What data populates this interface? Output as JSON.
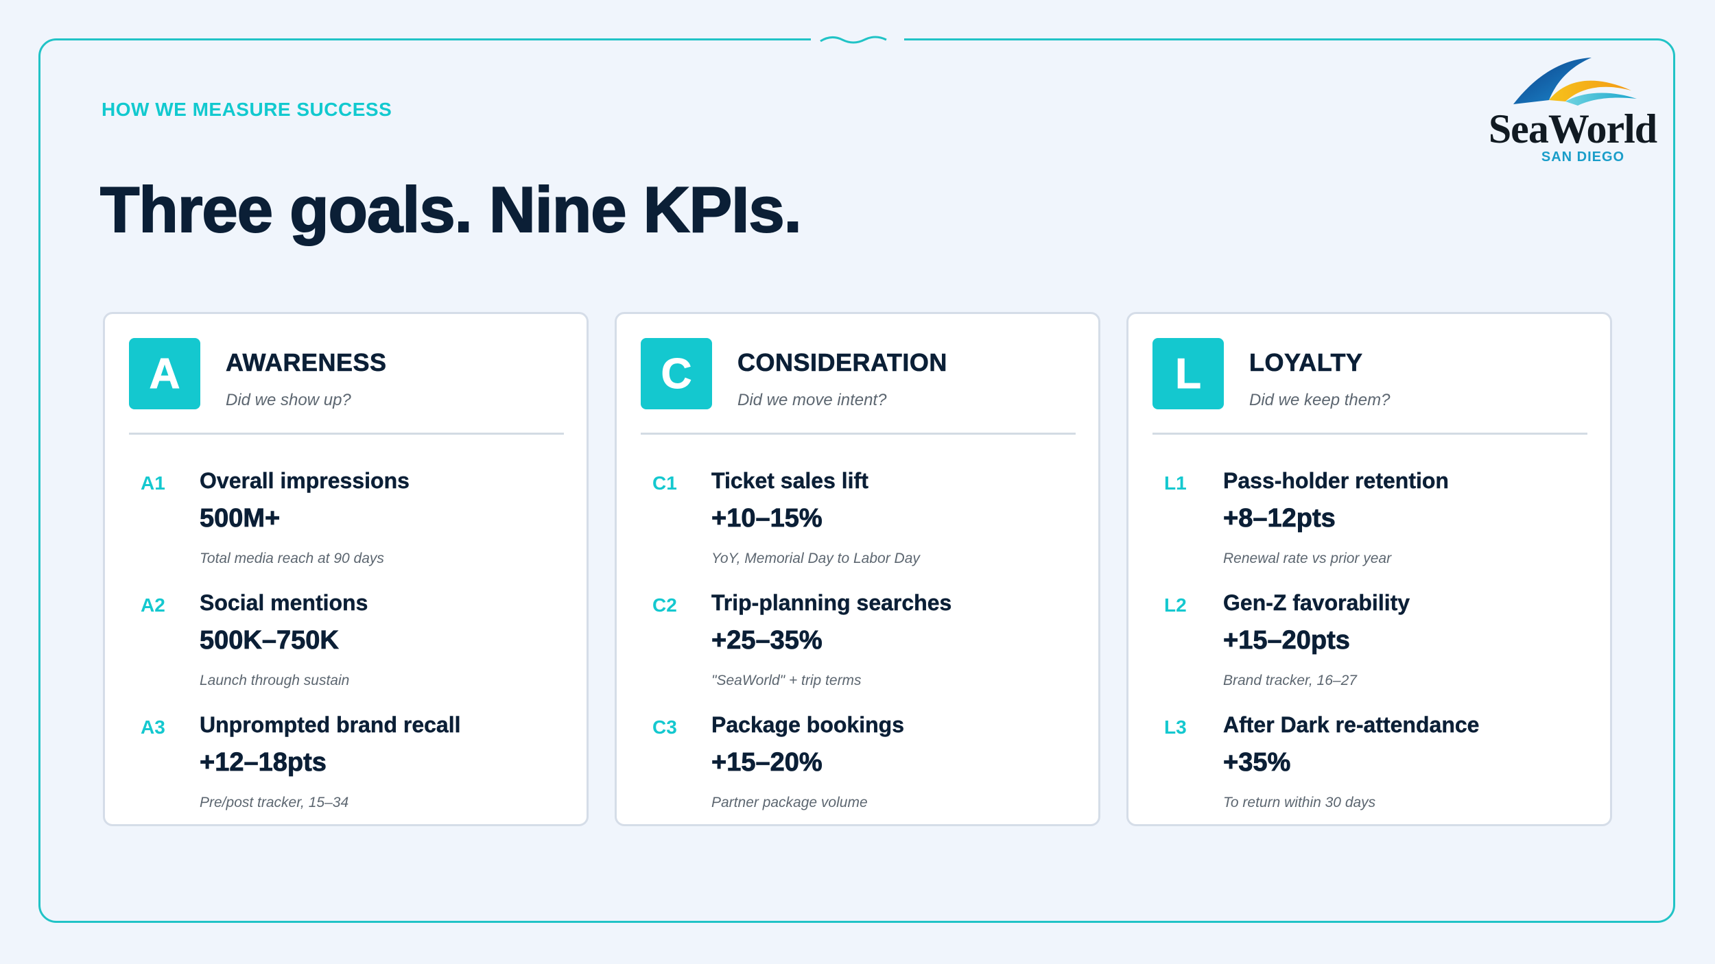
{
  "eyebrow": "HOW WE MEASURE SUCCESS",
  "title": "Three goals. Nine KPIs.",
  "logo": {
    "word": "SeaWorld",
    "sub": "SAN DIEGO"
  },
  "colors": {
    "accent": "#14c8cf",
    "ink": "#0b1f36",
    "background": "#f0f5fc",
    "frame": "#21c3c6"
  },
  "goals": [
    {
      "letter": "A",
      "name": "AWARENESS",
      "question": "Did we show up?",
      "kpis": [
        {
          "code": "A1",
          "name": "Overall impressions",
          "value": "500M+",
          "note": "Total media reach at 90 days"
        },
        {
          "code": "A2",
          "name": "Social mentions",
          "value": "500K–750K",
          "note": "Launch through sustain"
        },
        {
          "code": "A3",
          "name": "Unprompted brand recall",
          "value": "+12–18pts",
          "note": "Pre/post tracker, 15–34"
        }
      ]
    },
    {
      "letter": "C",
      "name": "CONSIDERATION",
      "question": "Did we move intent?",
      "kpis": [
        {
          "code": "C1",
          "name": "Ticket sales lift",
          "value": "+10–15%",
          "note": "YoY, Memorial Day to Labor Day"
        },
        {
          "code": "C2",
          "name": "Trip-planning searches",
          "value": "+25–35%",
          "note": "\"SeaWorld\" + trip terms"
        },
        {
          "code": "C3",
          "name": "Package bookings",
          "value": "+15–20%",
          "note": "Partner package volume"
        }
      ]
    },
    {
      "letter": "L",
      "name": "LOYALTY",
      "question": "Did we keep them?",
      "kpis": [
        {
          "code": "L1",
          "name": "Pass-holder retention",
          "value": "+8–12pts",
          "note": "Renewal rate vs prior year"
        },
        {
          "code": "L2",
          "name": "Gen-Z favorability",
          "value": "+15–20pts",
          "note": "Brand tracker, 16–27"
        },
        {
          "code": "L3",
          "name": "After Dark re-attendance",
          "value": "+35%",
          "note": "To return within 30 days"
        }
      ]
    }
  ]
}
